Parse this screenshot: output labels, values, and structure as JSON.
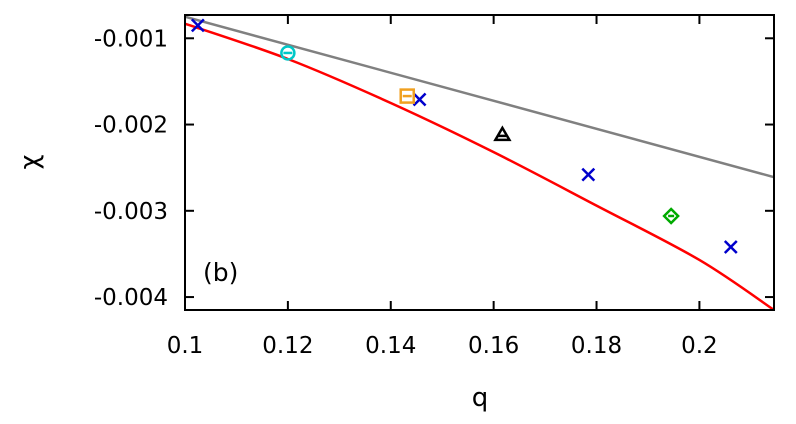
{
  "chart_data": {
    "type": "scatter",
    "panel_label": "(b)",
    "xlabel": "q",
    "ylabel": "χ",
    "xlim": [
      0.1,
      0.2145
    ],
    "ylim": [
      -0.00415,
      -0.00073
    ],
    "x_ticks": [
      0.1,
      0.12,
      0.14,
      0.16,
      0.18,
      0.2
    ],
    "x_tick_labels": [
      "0.1",
      "0.12",
      "0.14",
      "0.16",
      "0.18",
      "0.2"
    ],
    "y_ticks": [
      -0.001,
      -0.002,
      -0.003,
      -0.004
    ],
    "y_tick_labels": [
      "-0.001",
      "-0.002",
      "-0.003",
      "-0.004"
    ],
    "grid": false,
    "series": [
      {
        "type": "line",
        "color": "#808080",
        "x": [
          0.1,
          0.2145
        ],
        "y": [
          -0.00075,
          -0.00261
        ]
      },
      {
        "type": "line",
        "color": "#ff0000",
        "x": [
          0.1,
          0.12,
          0.14,
          0.16,
          0.18,
          0.2,
          0.2145
        ],
        "y": [
          -0.00083,
          -0.00124,
          -0.00175,
          -0.00232,
          -0.00294,
          -0.00357,
          -0.00415
        ]
      },
      {
        "type": "points",
        "marker": "x",
        "color": "#0000cc",
        "x": [
          0.1025,
          0.1456,
          0.1784,
          0.2061
        ],
        "y": [
          -0.00085,
          -0.00171,
          -0.00258,
          -0.00342
        ]
      },
      {
        "type": "points",
        "marker": "circle-dash",
        "color": "#00c8c8",
        "x": [
          0.12
        ],
        "y": [
          -0.00117
        ]
      },
      {
        "type": "points",
        "marker": "square-dash",
        "color": "#f0a020",
        "x": [
          0.1432
        ],
        "y": [
          -0.00167
        ]
      },
      {
        "type": "points",
        "marker": "triangle-dash",
        "color": "#000000",
        "x": [
          0.1617
        ],
        "y": [
          -0.00212
        ]
      },
      {
        "type": "points",
        "marker": "diamond-dash",
        "color": "#00aa00",
        "x": [
          0.1945
        ],
        "y": [
          -0.00306
        ]
      }
    ]
  }
}
